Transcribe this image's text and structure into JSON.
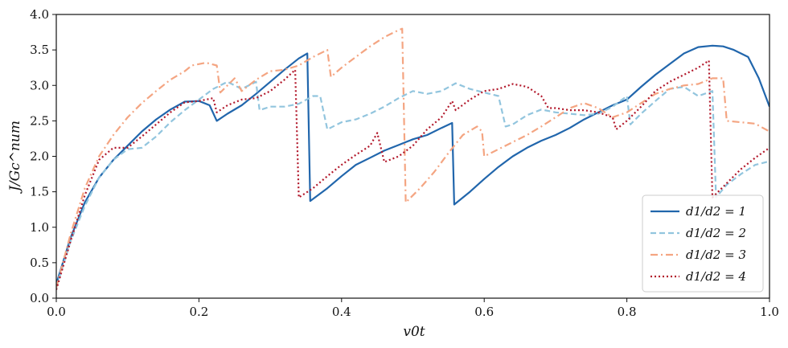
{
  "chart_data": {
    "type": "line",
    "xlabel": "v0t",
    "ylabel": "J/Gc^num",
    "xlim": [
      0.0,
      1.0
    ],
    "ylim": [
      0.0,
      4.0
    ],
    "xticks": [
      "0.0",
      "0.2",
      "0.4",
      "0.6",
      "0.8",
      "1.0"
    ],
    "yticks": [
      "0.0",
      "0.5",
      "1.0",
      "1.5",
      "2.0",
      "2.5",
      "3.0",
      "3.5",
      "4.0"
    ],
    "grid": false,
    "legend_position": "lower-right",
    "series": [
      {
        "name": "d1/d2 = 1",
        "color": "#2166ac",
        "dash": "solid",
        "x": [
          0,
          0.02,
          0.04,
          0.06,
          0.08,
          0.1,
          0.12,
          0.14,
          0.16,
          0.18,
          0.2,
          0.215,
          0.225,
          0.24,
          0.26,
          0.28,
          0.3,
          0.32,
          0.34,
          0.352,
          0.356,
          0.38,
          0.4,
          0.42,
          0.44,
          0.46,
          0.48,
          0.5,
          0.52,
          0.54,
          0.555,
          0.558,
          0.58,
          0.6,
          0.62,
          0.64,
          0.66,
          0.68,
          0.7,
          0.72,
          0.74,
          0.76,
          0.78,
          0.8,
          0.82,
          0.84,
          0.86,
          0.88,
          0.9,
          0.92,
          0.935,
          0.95,
          0.97,
          0.985,
          1.0
        ],
        "y": [
          0.2,
          0.85,
          1.35,
          1.7,
          1.95,
          2.15,
          2.35,
          2.52,
          2.66,
          2.77,
          2.78,
          2.72,
          2.5,
          2.6,
          2.72,
          2.88,
          3.05,
          3.22,
          3.38,
          3.45,
          1.37,
          1.55,
          1.72,
          1.88,
          1.98,
          2.08,
          2.16,
          2.24,
          2.3,
          2.4,
          2.47,
          1.32,
          1.5,
          1.68,
          1.85,
          2.0,
          2.12,
          2.22,
          2.3,
          2.4,
          2.52,
          2.62,
          2.72,
          2.8,
          2.98,
          3.15,
          3.3,
          3.45,
          3.54,
          3.56,
          3.55,
          3.5,
          3.4,
          3.1,
          2.7
        ]
      },
      {
        "name": "d1/d2 = 2",
        "color": "#92c5de",
        "dash": "dashed",
        "x": [
          0,
          0.02,
          0.04,
          0.06,
          0.08,
          0.1,
          0.12,
          0.14,
          0.16,
          0.18,
          0.2,
          0.22,
          0.24,
          0.26,
          0.28,
          0.285,
          0.3,
          0.32,
          0.34,
          0.36,
          0.37,
          0.38,
          0.4,
          0.42,
          0.44,
          0.46,
          0.48,
          0.5,
          0.52,
          0.54,
          0.56,
          0.58,
          0.6,
          0.62,
          0.63,
          0.64,
          0.66,
          0.68,
          0.7,
          0.72,
          0.74,
          0.76,
          0.78,
          0.8,
          0.805,
          0.82,
          0.84,
          0.86,
          0.88,
          0.9,
          0.92,
          0.925,
          0.94,
          0.96,
          0.98,
          1.0
        ],
        "y": [
          0.15,
          0.8,
          1.3,
          1.7,
          1.95,
          2.1,
          2.12,
          2.28,
          2.48,
          2.65,
          2.8,
          2.95,
          3.05,
          2.95,
          3.05,
          2.65,
          2.7,
          2.7,
          2.74,
          2.85,
          2.85,
          2.38,
          2.48,
          2.52,
          2.6,
          2.7,
          2.82,
          2.92,
          2.88,
          2.92,
          3.03,
          2.95,
          2.9,
          2.85,
          2.42,
          2.45,
          2.58,
          2.66,
          2.62,
          2.6,
          2.58,
          2.6,
          2.7,
          2.85,
          2.45,
          2.6,
          2.78,
          2.95,
          2.98,
          2.85,
          2.92,
          1.42,
          1.6,
          1.75,
          1.88,
          1.93
        ]
      },
      {
        "name": "d1/d2 = 3",
        "color": "#f4a582",
        "dash": "dashdot",
        "x": [
          0,
          0.02,
          0.04,
          0.06,
          0.08,
          0.1,
          0.12,
          0.14,
          0.16,
          0.18,
          0.19,
          0.21,
          0.225,
          0.23,
          0.25,
          0.26,
          0.28,
          0.3,
          0.32,
          0.34,
          0.36,
          0.38,
          0.385,
          0.4,
          0.42,
          0.44,
          0.46,
          0.48,
          0.485,
          0.49,
          0.51,
          0.53,
          0.55,
          0.57,
          0.59,
          0.597,
          0.6,
          0.62,
          0.64,
          0.66,
          0.68,
          0.7,
          0.72,
          0.74,
          0.76,
          0.78,
          0.8,
          0.82,
          0.84,
          0.86,
          0.88,
          0.9,
          0.92,
          0.935,
          0.94,
          0.96,
          0.98,
          1.0
        ],
        "y": [
          0.15,
          0.9,
          1.55,
          2.0,
          2.3,
          2.55,
          2.75,
          2.92,
          3.08,
          3.2,
          3.28,
          3.32,
          3.28,
          2.9,
          3.1,
          2.92,
          3.08,
          3.2,
          3.22,
          3.28,
          3.4,
          3.5,
          3.12,
          3.25,
          3.4,
          3.55,
          3.68,
          3.78,
          3.8,
          1.35,
          1.55,
          1.78,
          2.05,
          2.3,
          2.42,
          2.35,
          2.0,
          2.1,
          2.2,
          2.3,
          2.42,
          2.55,
          2.68,
          2.75,
          2.68,
          2.55,
          2.62,
          2.75,
          2.88,
          2.95,
          3.0,
          3.02,
          3.1,
          3.1,
          2.5,
          2.48,
          2.46,
          2.35
        ]
      },
      {
        "name": "d1/d2 = 4",
        "color": "#b2182b",
        "dash": "dotted",
        "x": [
          0,
          0.02,
          0.04,
          0.06,
          0.08,
          0.1,
          0.12,
          0.14,
          0.16,
          0.18,
          0.2,
          0.22,
          0.225,
          0.24,
          0.26,
          0.28,
          0.3,
          0.32,
          0.335,
          0.34,
          0.36,
          0.38,
          0.4,
          0.42,
          0.44,
          0.45,
          0.46,
          0.48,
          0.5,
          0.52,
          0.54,
          0.555,
          0.56,
          0.58,
          0.6,
          0.62,
          0.64,
          0.66,
          0.68,
          0.69,
          0.7,
          0.72,
          0.74,
          0.76,
          0.78,
          0.785,
          0.8,
          0.82,
          0.84,
          0.86,
          0.88,
          0.9,
          0.915,
          0.92,
          0.94,
          0.96,
          0.98,
          1.0
        ],
        "y": [
          0.12,
          0.8,
          1.45,
          1.95,
          2.12,
          2.12,
          2.28,
          2.45,
          2.62,
          2.76,
          2.78,
          2.82,
          2.62,
          2.72,
          2.8,
          2.82,
          2.92,
          3.08,
          3.22,
          1.42,
          1.55,
          1.72,
          1.88,
          2.02,
          2.15,
          2.33,
          1.92,
          2.0,
          2.15,
          2.38,
          2.55,
          2.78,
          2.65,
          2.8,
          2.92,
          2.95,
          3.02,
          2.98,
          2.85,
          2.68,
          2.68,
          2.65,
          2.65,
          2.62,
          2.55,
          2.38,
          2.5,
          2.7,
          2.92,
          3.05,
          3.15,
          3.25,
          3.35,
          1.42,
          1.62,
          1.82,
          1.98,
          2.12
        ]
      }
    ]
  }
}
